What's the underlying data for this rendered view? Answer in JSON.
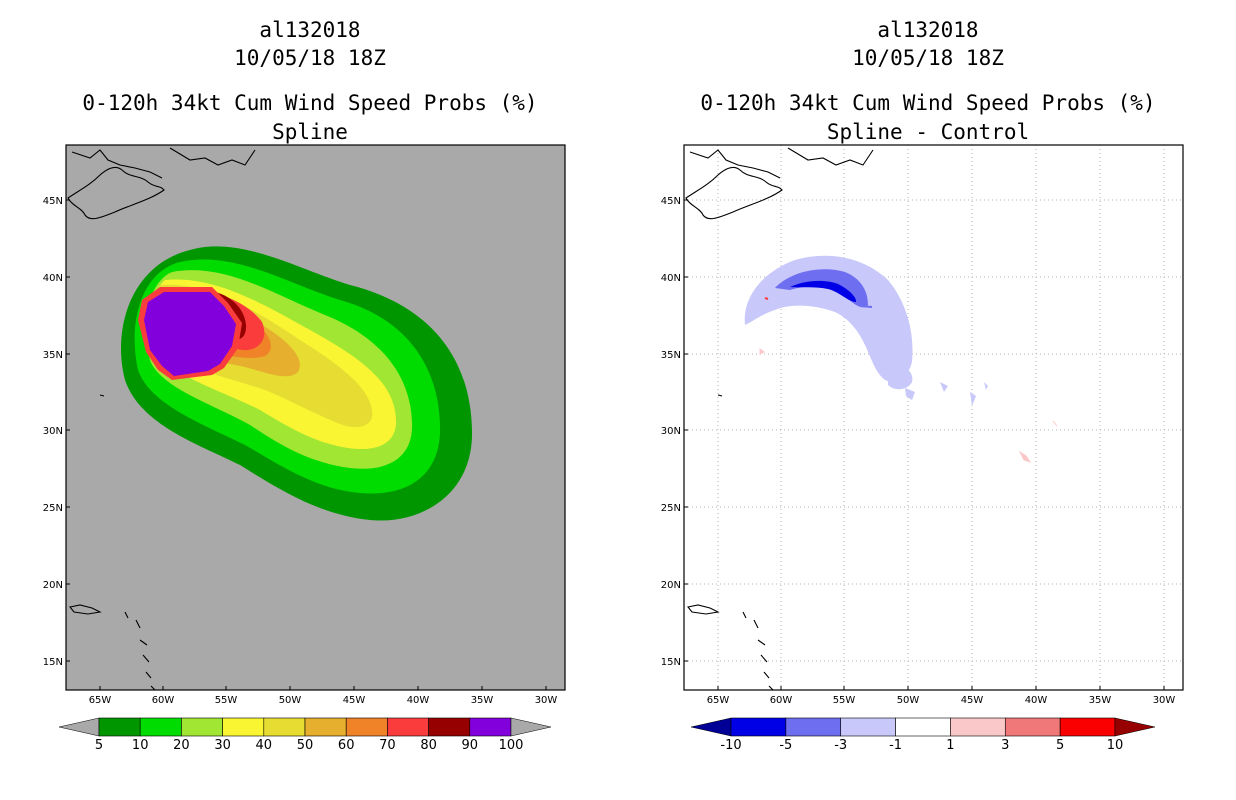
{
  "left_panel": {
    "storm_id": "al132018",
    "datetime": "10/05/18 18Z",
    "product": "0-120h 34kt Cum Wind Speed Probs (%)",
    "subtitle": "Spline",
    "colorbar": {
      "labels": [
        "5",
        "10",
        "20",
        "30",
        "40",
        "50",
        "60",
        "70",
        "80",
        "90",
        "100"
      ],
      "colors": [
        "#009600",
        "#00dc00",
        "#a0e632",
        "#faf532",
        "#e6dc32",
        "#e6af2d",
        "#f08228",
        "#fa3c3c",
        "#960000",
        "#8200dc"
      ],
      "under_color": "#a9a9a9",
      "over_color": "#a9a9a9"
    }
  },
  "right_panel": {
    "storm_id": "al132018",
    "datetime": "10/05/18 18Z",
    "product": "0-120h 34kt Cum Wind Speed Probs (%)",
    "subtitle": "Spline - Control",
    "colorbar": {
      "labels": [
        "-10",
        "-5",
        "-3",
        "-1",
        "1",
        "3",
        "5",
        "10"
      ],
      "colors": [
        "#0000e6",
        "#6e6ef0",
        "#c8c8fa",
        "#ffffff",
        "#fac8c8",
        "#f07878",
        "#fa0000"
      ],
      "under_color": "#000096",
      "over_color": "#960000"
    }
  },
  "axes": {
    "lon_labels": [
      "65W",
      "60W",
      "55W",
      "50W",
      "45W",
      "40W",
      "35W",
      "30W"
    ],
    "lat_labels": [
      "45N",
      "40N",
      "35N",
      "30N",
      "25N",
      "20N",
      "15N"
    ]
  },
  "colors": {
    "map_background": "#a9a9a9",
    "frame": "#000000"
  }
}
